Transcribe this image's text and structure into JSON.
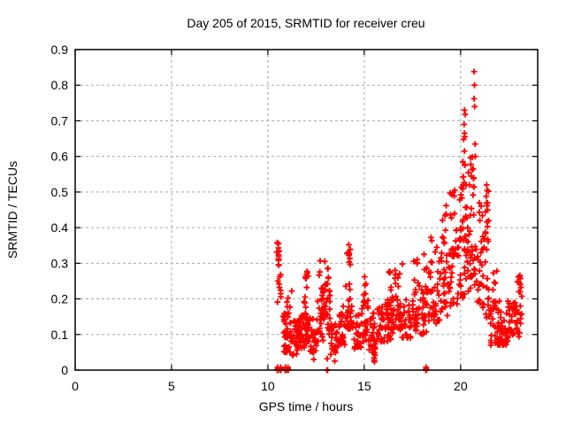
{
  "chart_data": {
    "type": "scatter",
    "title": "Day 205 of 2015, SRMTID for receiver creu",
    "xlabel": "GPS time / hours",
    "ylabel": "SRMTID / TECUs",
    "xlim": [
      0,
      24
    ],
    "ylim": [
      0,
      0.9
    ],
    "xticks": [
      0,
      5,
      10,
      15,
      20
    ],
    "xtick_labels": [
      "0",
      "5",
      "10",
      "15",
      "20"
    ],
    "yticks": [
      0,
      0.1,
      0.2,
      0.3,
      0.4,
      0.5,
      0.6,
      0.7,
      0.8,
      0.9
    ],
    "ytick_labels": [
      "0",
      "0.1",
      "0.2",
      "0.3",
      "0.4",
      "0.5",
      "0.6",
      "0.7",
      "0.8",
      "0.9"
    ],
    "grid": true,
    "legend": "none",
    "marker": "plus",
    "marker_color": "#ff0000",
    "grid_color": "#a8a8a8",
    "border_color": "#000000",
    "background_color": "#ffffff",
    "data_span_hours": [
      10.45,
      23.2
    ],
    "points": [
      [
        10.49,
        0
      ],
      [
        10.51,
        0.004
      ],
      [
        10.53,
        0
      ],
      [
        10.51,
        0.008
      ],
      [
        10.64,
        0
      ],
      [
        10.66,
        0.004
      ],
      [
        10.68,
        0
      ],
      [
        10.66,
        0.008
      ],
      [
        10.89,
        0
      ],
      [
        10.91,
        0.004
      ],
      [
        10.93,
        0
      ],
      [
        10.91,
        0.008
      ],
      [
        11.02,
        0
      ],
      [
        11.04,
        0.004
      ],
      [
        11.06,
        0
      ],
      [
        11.04,
        0.008
      ],
      [
        13.06,
        0
      ],
      [
        13.1,
        0
      ],
      [
        18.19,
        0
      ],
      [
        18.21,
        0.004
      ],
      [
        18.23,
        0
      ],
      [
        18.21,
        0.008
      ],
      [
        13.08,
        0.032
      ],
      [
        12.38,
        0.03
      ],
      [
        13.47,
        0.025
      ],
      [
        15.52,
        0.028
      ],
      [
        15.56,
        0.042
      ],
      [
        10.55,
        0.355
      ],
      [
        10.55,
        0.343
      ],
      [
        10.55,
        0.332
      ],
      [
        10.56,
        0.32
      ],
      [
        10.55,
        0.308
      ],
      [
        10.56,
        0.296
      ],
      [
        10.62,
        0.262
      ],
      [
        10.66,
        0.268
      ],
      [
        10.58,
        0.242
      ],
      [
        10.6,
        0.232
      ],
      [
        11.24,
        0.222
      ],
      [
        10.52,
        0.25
      ],
      [
        11.97,
        0.262
      ],
      [
        12.0,
        0.268
      ],
      [
        14.2,
        0.352
      ],
      [
        14.18,
        0.33
      ],
      [
        16.98,
        0.298
      ],
      [
        16.6,
        0.28
      ],
      [
        12.95,
        0.305
      ],
      [
        15.02,
        0.262
      ],
      [
        17.75,
        0.31
      ],
      [
        20.7,
        0.838
      ],
      [
        20.72,
        0.8
      ],
      [
        20.7,
        0.762
      ],
      [
        20.73,
        0.74
      ],
      [
        20.2,
        0.73
      ],
      [
        20.24,
        0.718
      ],
      [
        20.18,
        0.69
      ],
      [
        20.2,
        0.665
      ],
      [
        20.22,
        0.655
      ],
      [
        20.16,
        0.648
      ],
      [
        20.75,
        0.635
      ],
      [
        20.2,
        0.615
      ],
      [
        20.76,
        0.6
      ],
      [
        20.12,
        0.585
      ],
      [
        20.22,
        0.575
      ],
      [
        20.65,
        0.565
      ],
      [
        20.4,
        0.555
      ],
      [
        20.55,
        0.545
      ],
      [
        20.15,
        0.543
      ],
      [
        20.68,
        0.54
      ],
      [
        21.35,
        0.52
      ],
      [
        21.38,
        0.505
      ],
      [
        21.33,
        0.488
      ],
      [
        21.4,
        0.47
      ],
      [
        19.25,
        0.462
      ],
      [
        19.55,
        0.492
      ],
      [
        19.7,
        0.505
      ],
      [
        23.05,
        0.262
      ],
      [
        22.95,
        0.248
      ],
      [
        23.1,
        0.24
      ]
    ],
    "clusters": [
      [
        10.45,
        10.62,
        6,
        0.29,
        0.36,
        1
      ],
      [
        10.45,
        10.7,
        5,
        0.19,
        0.27,
        1
      ],
      [
        10.78,
        11.2,
        40,
        0.05,
        0.16,
        1.6
      ],
      [
        10.95,
        11.15,
        5,
        0.16,
        0.22,
        1
      ],
      [
        11.2,
        11.6,
        30,
        0.04,
        0.14,
        1.4
      ],
      [
        11.6,
        11.95,
        28,
        0.06,
        0.17,
        1.3
      ],
      [
        11.85,
        12.15,
        26,
        0.08,
        0.23,
        1.3
      ],
      [
        11.95,
        12.1,
        6,
        0.23,
        0.28,
        1
      ],
      [
        12.15,
        12.55,
        26,
        0.05,
        0.15,
        1.4
      ],
      [
        12.55,
        12.95,
        28,
        0.08,
        0.21,
        1.2
      ],
      [
        12.65,
        12.95,
        8,
        0.21,
        0.31,
        1
      ],
      [
        12.95,
        13.25,
        24,
        0.1,
        0.25,
        1.2
      ],
      [
        13.0,
        13.2,
        4,
        0.25,
        0.3,
        1
      ],
      [
        13.25,
        13.65,
        28,
        0.04,
        0.14,
        1.3
      ],
      [
        13.65,
        14.0,
        24,
        0.07,
        0.18,
        1.3
      ],
      [
        14.0,
        14.4,
        26,
        0.1,
        0.26,
        1.2
      ],
      [
        14.1,
        14.35,
        7,
        0.27,
        0.35,
        1
      ],
      [
        14.4,
        14.85,
        26,
        0.06,
        0.16,
        1.4
      ],
      [
        14.85,
        15.25,
        28,
        0.08,
        0.2,
        1.3
      ],
      [
        14.95,
        15.15,
        5,
        0.21,
        0.26,
        1
      ],
      [
        15.25,
        15.65,
        26,
        0.05,
        0.16,
        1.4
      ],
      [
        15.4,
        15.6,
        4,
        0.02,
        0.05,
        1
      ],
      [
        15.65,
        16.05,
        26,
        0.08,
        0.18,
        1.3
      ],
      [
        16.05,
        16.45,
        28,
        0.08,
        0.2,
        1.2
      ],
      [
        16.15,
        16.4,
        5,
        0.21,
        0.3,
        1
      ],
      [
        16.45,
        16.9,
        28,
        0.1,
        0.21,
        1.2
      ],
      [
        16.55,
        16.85,
        6,
        0.22,
        0.28,
        1
      ],
      [
        16.9,
        17.4,
        28,
        0.09,
        0.2,
        1.3
      ],
      [
        17.4,
        17.85,
        26,
        0.1,
        0.23,
        1.2
      ],
      [
        17.5,
        17.8,
        5,
        0.24,
        0.31,
        1
      ],
      [
        17.85,
        18.35,
        28,
        0.1,
        0.26,
        1.2
      ],
      [
        18.0,
        18.3,
        4,
        0.27,
        0.33,
        1
      ],
      [
        18.35,
        18.85,
        28,
        0.12,
        0.29,
        1.2
      ],
      [
        18.45,
        18.8,
        6,
        0.3,
        0.38,
        1
      ],
      [
        18.85,
        19.35,
        30,
        0.14,
        0.33,
        1.1
      ],
      [
        18.95,
        19.3,
        8,
        0.34,
        0.45,
        1
      ],
      [
        19.35,
        19.85,
        30,
        0.17,
        0.38,
        1.1
      ],
      [
        19.45,
        19.8,
        8,
        0.39,
        0.5,
        1
      ],
      [
        19.85,
        20.35,
        34,
        0.2,
        0.46,
        1.1
      ],
      [
        19.95,
        20.3,
        10,
        0.47,
        0.58,
        1
      ],
      [
        20.35,
        20.85,
        34,
        0.22,
        0.5,
        1.1
      ],
      [
        20.45,
        20.8,
        8,
        0.51,
        0.6,
        1
      ],
      [
        20.85,
        21.25,
        24,
        0.17,
        0.38,
        1.2
      ],
      [
        20.95,
        21.2,
        5,
        0.4,
        0.48,
        1
      ],
      [
        21.28,
        21.48,
        14,
        0.3,
        0.52,
        1
      ],
      [
        21.3,
        21.55,
        10,
        0.14,
        0.26,
        1
      ],
      [
        21.55,
        22.05,
        34,
        0.07,
        0.2,
        1.4
      ],
      [
        21.65,
        21.95,
        5,
        0.21,
        0.28,
        1
      ],
      [
        22.05,
        22.45,
        26,
        0.07,
        0.17,
        1.4
      ],
      [
        22.45,
        22.85,
        24,
        0.08,
        0.2,
        1.3
      ],
      [
        22.85,
        23.2,
        22,
        0.09,
        0.24,
        1.2
      ],
      [
        22.95,
        23.15,
        4,
        0.24,
        0.27,
        1
      ]
    ]
  }
}
